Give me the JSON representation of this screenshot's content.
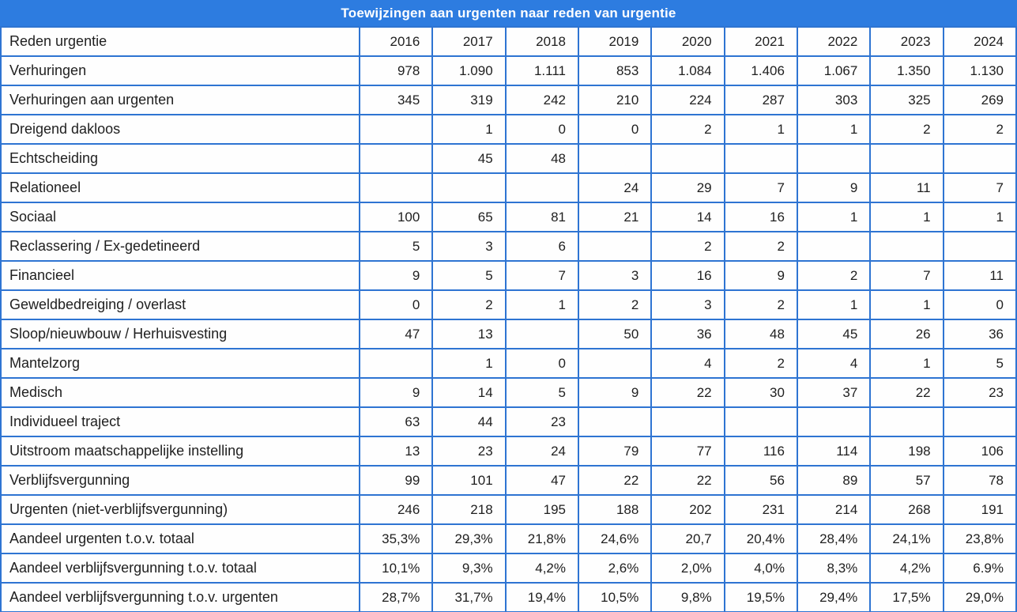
{
  "title": "Toewijzingen aan urgenten naar reden van urgentie",
  "colors": {
    "header_blue": "#2d7ce0",
    "border_blue": "#2e74d2",
    "text": "#1f1f1f",
    "cell_background": "#fefefe"
  },
  "chart_data": {
    "type": "table",
    "title": "Toewijzingen aan urgenten naar reden van urgentie",
    "row_header_label": "Reden urgentie",
    "categories": [
      "2016",
      "2017",
      "2018",
      "2019",
      "2020",
      "2021",
      "2022",
      "2023",
      "2024"
    ],
    "rows": [
      {
        "label": "Verhuringen",
        "values": [
          "978",
          "1.090",
          "1.111",
          "853",
          "1.084",
          "1.406",
          "1.067",
          "1.350",
          "1.130"
        ]
      },
      {
        "label": "Verhuringen aan urgenten",
        "values": [
          "345",
          "319",
          "242",
          "210",
          "224",
          "287",
          "303",
          "325",
          "269"
        ]
      },
      {
        "label": "Dreigend dakloos",
        "values": [
          "",
          "1",
          "0",
          "0",
          "2",
          "1",
          "1",
          "2",
          "2"
        ]
      },
      {
        "label": "Echtscheiding",
        "values": [
          "",
          "45",
          "48",
          "",
          "",
          "",
          "",
          "",
          ""
        ]
      },
      {
        "label": "Relationeel",
        "values": [
          "",
          "",
          "",
          "24",
          "29",
          "7",
          "9",
          "11",
          "7"
        ]
      },
      {
        "label": "Sociaal",
        "values": [
          "100",
          "65",
          "81",
          "21",
          "14",
          "16",
          "1",
          "1",
          "1"
        ]
      },
      {
        "label": "Reclassering / Ex-gedetineerd",
        "values": [
          "5",
          "3",
          "6",
          "",
          "2",
          "2",
          "",
          "",
          ""
        ]
      },
      {
        "label": "Financieel",
        "values": [
          "9",
          "5",
          "7",
          "3",
          "16",
          "9",
          "2",
          "7",
          "11"
        ]
      },
      {
        "label": "Geweldbedreiging / overlast",
        "values": [
          "0",
          "2",
          "1",
          "2",
          "3",
          "2",
          "1",
          "1",
          "0"
        ]
      },
      {
        "label": "Sloop/nieuwbouw / Herhuisvesting",
        "values": [
          "47",
          "13",
          "",
          "50",
          "36",
          "48",
          "45",
          "26",
          "36"
        ]
      },
      {
        "label": "Mantelzorg",
        "values": [
          "",
          "1",
          "0",
          "",
          "4",
          "2",
          "4",
          "1",
          "5"
        ]
      },
      {
        "label": "Medisch",
        "values": [
          "9",
          "14",
          "5",
          "9",
          "22",
          "30",
          "37",
          "22",
          "23"
        ]
      },
      {
        "label": "Individueel traject",
        "values": [
          "63",
          "44",
          "23",
          "",
          "",
          "",
          "",
          "",
          ""
        ]
      },
      {
        "label": "Uitstroom maatschappelijke instelling",
        "values": [
          "13",
          "23",
          "24",
          "79",
          "77",
          "116",
          "114",
          "198",
          "106"
        ]
      },
      {
        "label": "Verblijfsvergunning",
        "values": [
          "99",
          "101",
          "47",
          "22",
          "22",
          "56",
          "89",
          "57",
          "78"
        ]
      },
      {
        "label": "Urgenten (niet-verblijfsvergunning)",
        "values": [
          "246",
          "218",
          "195",
          "188",
          "202",
          "231",
          "214",
          "268",
          "191"
        ]
      },
      {
        "label": "Aandeel urgenten t.o.v. totaal",
        "values": [
          "35,3%",
          "29,3%",
          "21,8%",
          "24,6%",
          "20,7",
          "20,4%",
          "28,4%",
          "24,1%",
          "23,8%"
        ]
      },
      {
        "label": "Aandeel verblijfsvergunning t.o.v. totaal",
        "values": [
          "10,1%",
          "9,3%",
          "4,2%",
          "2,6%",
          "2,0%",
          "4,0%",
          "8,3%",
          "4,2%",
          "6.9%"
        ]
      },
      {
        "label": "Aandeel verblijfsvergunning t.o.v. urgenten",
        "values": [
          "28,7%",
          "31,7%",
          "19,4%",
          "10,5%",
          "9,8%",
          "19,5%",
          "29,4%",
          "17,5%",
          "29,0%"
        ]
      }
    ]
  }
}
